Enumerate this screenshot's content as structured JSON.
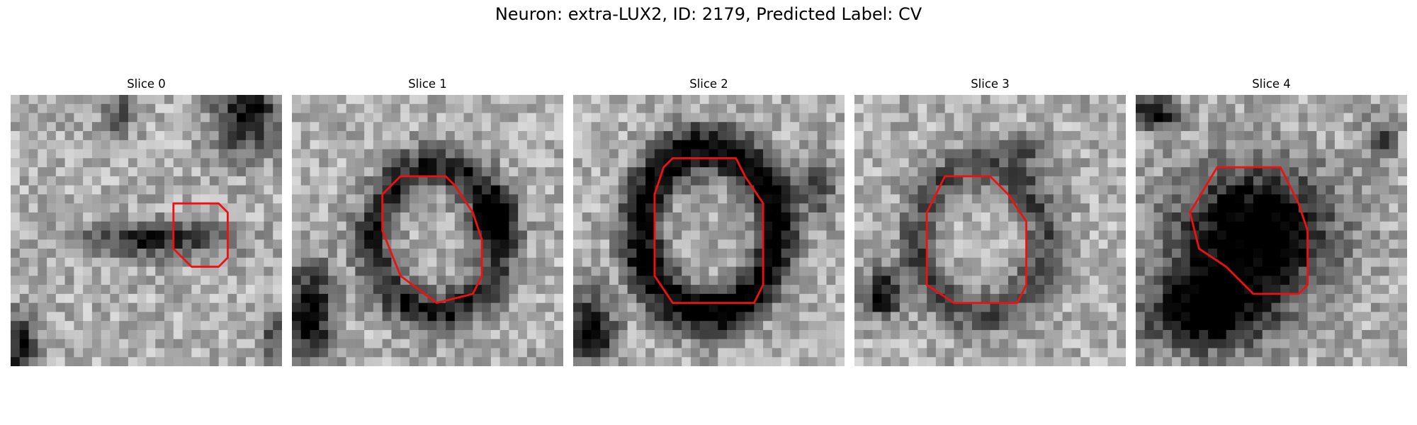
{
  "figure": {
    "suptitle": "Neuron: extra-LUX2, ID: 2179, Predicted Label: CV",
    "contour_color": "#ee1111",
    "colormap": "gray"
  },
  "slices": [
    {
      "title": "Slice 0",
      "contour": [
        [
          20,
          12
        ],
        [
          23,
          12
        ],
        [
          24,
          13
        ],
        [
          24,
          18
        ],
        [
          23,
          19
        ],
        [
          20,
          19
        ],
        [
          18,
          17
        ],
        [
          18,
          12
        ]
      ]
    },
    {
      "title": "Slice 1",
      "contour": [
        [
          12,
          9
        ],
        [
          17,
          9
        ],
        [
          18,
          10
        ],
        [
          20,
          13
        ],
        [
          21,
          16
        ],
        [
          21,
          20
        ],
        [
          20,
          22
        ],
        [
          16,
          23
        ],
        [
          12,
          20
        ],
        [
          10,
          15
        ],
        [
          10,
          11
        ]
      ]
    },
    {
      "title": "Slice 2",
      "contour": [
        [
          11,
          7
        ],
        [
          18,
          7
        ],
        [
          19,
          9
        ],
        [
          21,
          12
        ],
        [
          21,
          21
        ],
        [
          20,
          23
        ],
        [
          11,
          23
        ],
        [
          9,
          20
        ],
        [
          9,
          11
        ],
        [
          10,
          8
        ]
      ]
    },
    {
      "title": "Slice 3",
      "contour": [
        [
          10,
          9
        ],
        [
          15,
          9
        ],
        [
          17,
          11
        ],
        [
          19,
          14
        ],
        [
          19,
          21
        ],
        [
          18,
          23
        ],
        [
          11,
          23
        ],
        [
          8,
          21
        ],
        [
          8,
          13
        ]
      ]
    },
    {
      "title": "Slice 4",
      "contour": [
        [
          9,
          8
        ],
        [
          16,
          8
        ],
        [
          17,
          10
        ],
        [
          18,
          12
        ],
        [
          19,
          15
        ],
        [
          19,
          21
        ],
        [
          18,
          22
        ],
        [
          13,
          22
        ],
        [
          10,
          19
        ],
        [
          7,
          17
        ],
        [
          6,
          13
        ]
      ]
    }
  ]
}
